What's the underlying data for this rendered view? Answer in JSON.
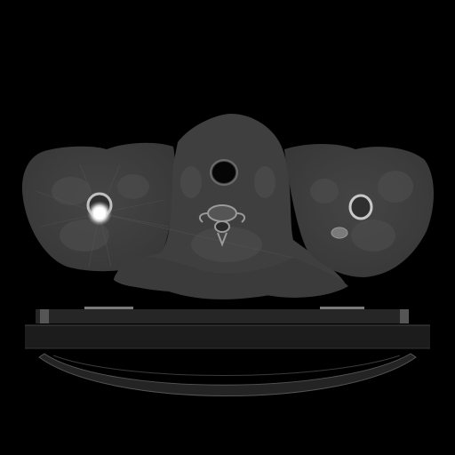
{
  "image": {
    "modality": "CT",
    "view": "axial",
    "region": "neck-shoulders",
    "window": "bone",
    "colors": {
      "background": "#000000",
      "soft_tissue": "#3a3a3a",
      "muscle": "#4a4a4a",
      "table": "#222222",
      "bone": "#c8c8c8",
      "metal": "#ffffff",
      "airway": "#050505"
    }
  }
}
